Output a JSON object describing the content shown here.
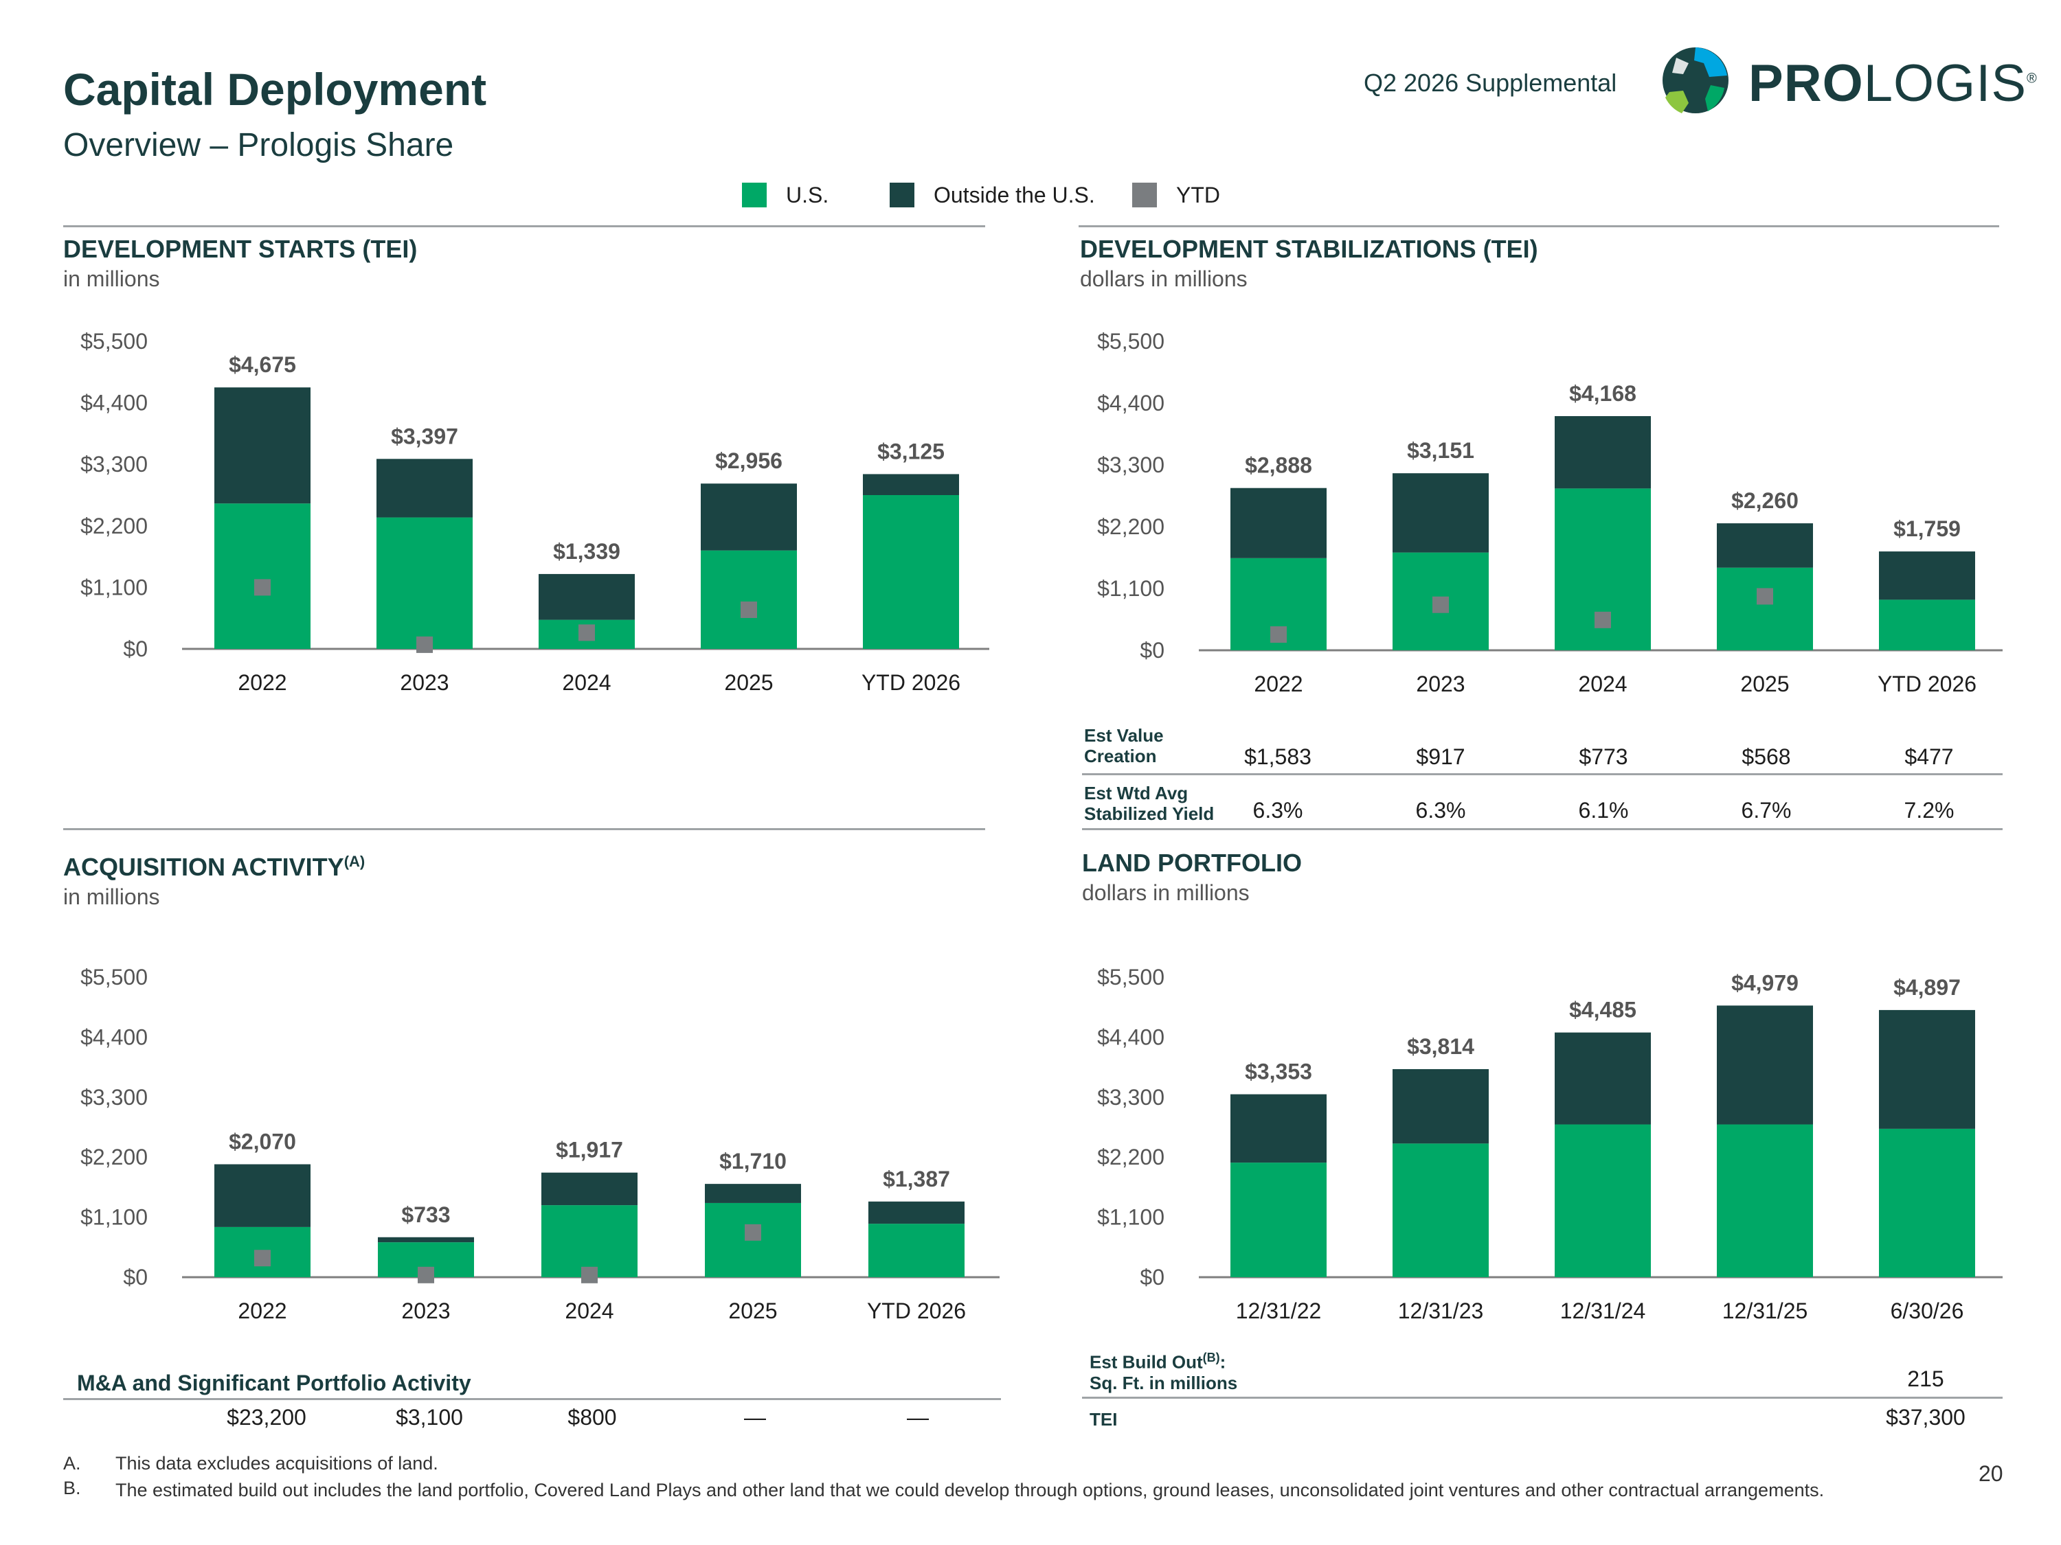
{
  "header": {
    "title": "Capital Deployment",
    "subtitle": "Overview – Prologis Share",
    "supplemental": "Q2 2026 Supplemental",
    "logo_text_bold": "PRO",
    "logo_text_rest": "LOGIS",
    "logo_reg": "®"
  },
  "legend": {
    "items": [
      {
        "label": "U.S.",
        "color": "#00a866"
      },
      {
        "label": "Outside the U.S.",
        "color": "#1b4443"
      },
      {
        "label": "YTD",
        "color": "#7a7d80"
      }
    ]
  },
  "colors": {
    "us": "#00a866",
    "outside": "#1b4443",
    "ytd": "#7a7d80",
    "axis": "#7f7f7f",
    "label": "#555555"
  },
  "panels": {
    "starts": {
      "title": "DEVELOPMENT STARTS (TEI)",
      "unit": "in millions"
    },
    "stabilizations": {
      "title": "DEVELOPMENT STABILIZATIONS (TEI)",
      "unit": "dollars in millions"
    },
    "acquisitions": {
      "title": "ACQUISITION ACTIVITY",
      "title_sup": "(A)",
      "unit": "in millions"
    },
    "land": {
      "title": "LAND PORTFOLIO",
      "unit": "dollars in millions"
    }
  },
  "stab_table": {
    "row1_label_l1": "Est Value",
    "row1_label_l2": "Creation",
    "row1_values": [
      "$1,583",
      "$917",
      "$773",
      "$568",
      "$477"
    ],
    "row2_label_l1": "Est Wtd Avg",
    "row2_label_l2": "Stabilized Yield",
    "row2_values": [
      "6.3%",
      "6.3%",
      "6.1%",
      "6.7%",
      "7.2%"
    ]
  },
  "ma_table": {
    "title": "M&A and Significant Portfolio Activity",
    "values": [
      "$23,200",
      "$3,100",
      "$800",
      "—",
      "—"
    ]
  },
  "land_table": {
    "buildout_label_l1": "Est Build Out",
    "buildout_label_sup": "(B)",
    "buildout_label_colon": ":",
    "buildout_label_l2": "Sq. Ft. in millions",
    "buildout_value": "215",
    "tei_label": "TEI",
    "tei_value": "$37,300"
  },
  "footnotes": [
    {
      "marker": "A.",
      "text": "This data excludes acquisitions of land."
    },
    {
      "marker": "B.",
      "text": "The estimated build out includes the land portfolio, Covered Land Plays and other land that we could develop through options, ground leases, unconsolidated joint ventures and other contractual arrangements."
    }
  ],
  "page_number": "20",
  "chart_data": [
    {
      "id": "starts",
      "type": "bar",
      "stacked": true,
      "categories": [
        "2022",
        "2023",
        "2024",
        "2025",
        "YTD 2026"
      ],
      "series": [
        {
          "name": "U.S.",
          "values": [
            2600,
            2350,
            520,
            1760,
            2750
          ]
        },
        {
          "name": "Outside the U.S.",
          "values": [
            2075,
            1047,
            819,
            1196,
            375
          ]
        }
      ],
      "ytd_markers": [
        1100,
        75,
        290,
        700,
        null
      ],
      "totals": [
        "$4,675",
        "$3,397",
        "$1,339",
        "$2,956",
        "$3,125"
      ],
      "y_ticks": [
        "$0",
        "$1,100",
        "$2,200",
        "$3,300",
        "$4,400",
        "$5,500"
      ],
      "ylim": [
        0,
        5500
      ]
    },
    {
      "id": "stabilizations",
      "type": "bar",
      "stacked": true,
      "categories": [
        "2022",
        "2023",
        "2024",
        "2025",
        "YTD 2026"
      ],
      "series": [
        {
          "name": "U.S.",
          "values": [
            1640,
            1740,
            2880,
            1470,
            900
          ]
        },
        {
          "name": "Outside the U.S.",
          "values": [
            1248,
            1411,
            1288,
            790,
            859
          ]
        }
      ],
      "ytd_markers": [
        280,
        810,
        540,
        960,
        null
      ],
      "totals": [
        "$2,888",
        "$3,151",
        "$4,168",
        "$2,260",
        "$1,759"
      ],
      "y_ticks": [
        "$0",
        "$1,100",
        "$2,200",
        "$3,300",
        "$4,400",
        "$5,500"
      ],
      "ylim": [
        0,
        5500
      ]
    },
    {
      "id": "acquisitions",
      "type": "bar",
      "stacked": true,
      "categories": [
        "2022",
        "2023",
        "2024",
        "2025",
        "YTD 2026"
      ],
      "series": [
        {
          "name": "U.S.",
          "values": [
            920,
            640,
            1320,
            1360,
            980
          ]
        },
        {
          "name": "Outside the U.S.",
          "values": [
            1150,
            93,
            597,
            350,
            407
          ]
        }
      ],
      "ytd_markers": [
        350,
        40,
        40,
        820,
        null
      ],
      "totals": [
        "$2,070",
        "$733",
        "$1,917",
        "$1,710",
        "$1,387"
      ],
      "y_ticks": [
        "$0",
        "$1,100",
        "$2,200",
        "$3,300",
        "$4,400",
        "$5,500"
      ],
      "ylim": [
        0,
        5500
      ]
    },
    {
      "id": "land",
      "type": "bar",
      "stacked": true,
      "categories": [
        "12/31/22",
        "12/31/23",
        "12/31/24",
        "12/31/25",
        "6/30/26"
      ],
      "series": [
        {
          "name": "U.S.",
          "values": [
            2100,
            2450,
            2800,
            2800,
            2720
          ]
        },
        {
          "name": "Outside the U.S.",
          "values": [
            1253,
            1364,
            1685,
            2179,
            2177
          ]
        }
      ],
      "ytd_markers": [
        null,
        null,
        null,
        null,
        null
      ],
      "totals": [
        "$3,353",
        "$3,814",
        "$4,485",
        "$4,979",
        "$4,897"
      ],
      "y_ticks": [
        "$0",
        "$1,100",
        "$2,200",
        "$3,300",
        "$4,400",
        "$5,500"
      ],
      "ylim": [
        0,
        5500
      ]
    }
  ]
}
